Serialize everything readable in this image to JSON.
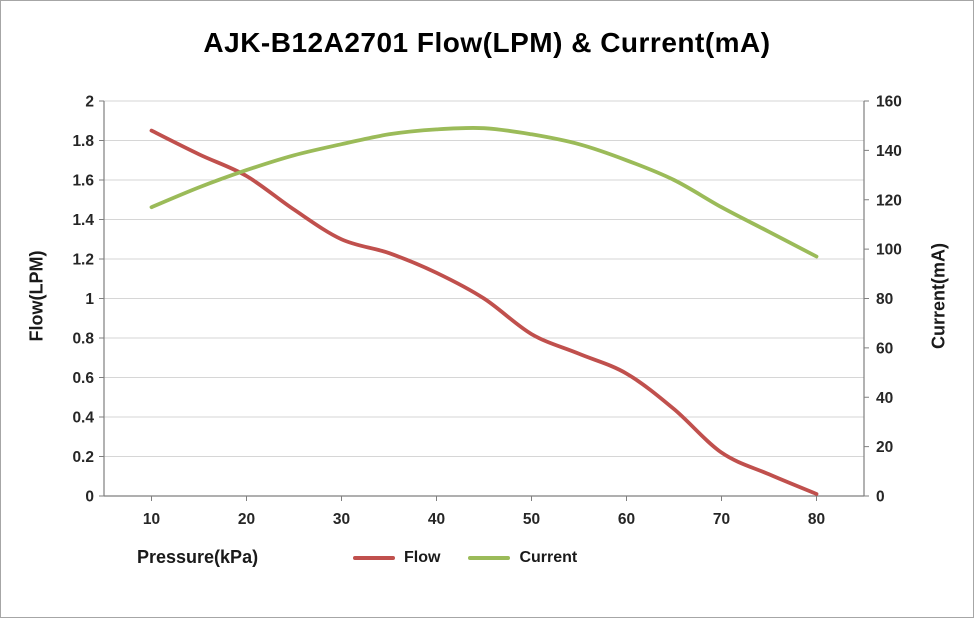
{
  "chart_data": {
    "type": "line",
    "title": "AJK-B12A2701 Flow(LPM) & Current(mA)",
    "xlabel": "Pressure(kPa)",
    "ylabel_left": "Flow(LPM)",
    "ylabel_right": "Current(mA)",
    "xlim": [
      5,
      85
    ],
    "x_ticks": [
      10,
      20,
      30,
      40,
      50,
      60,
      70,
      80
    ],
    "ylim_left": [
      0,
      2
    ],
    "ytick_step_left": 0.2,
    "ylim_right": [
      0,
      160
    ],
    "ytick_step_right": 20,
    "grid": "horizontal",
    "grid_color": "#d6d6d6",
    "axis_color": "#7f7f7f",
    "legend_position": "bottom",
    "series": [
      {
        "name": "Flow",
        "axis": "left",
        "color": "#c0504d",
        "x": [
          10,
          15,
          20,
          25,
          30,
          35,
          40,
          45,
          50,
          55,
          60,
          65,
          70,
          75,
          80
        ],
        "values": [
          1.85,
          1.73,
          1.62,
          1.45,
          1.3,
          1.23,
          1.13,
          1.0,
          0.82,
          0.72,
          0.62,
          0.44,
          0.22,
          0.11,
          0.01
        ]
      },
      {
        "name": "Current",
        "axis": "right",
        "color": "#9bbb59",
        "x": [
          10,
          15,
          20,
          25,
          30,
          35,
          40,
          45,
          50,
          55,
          60,
          65,
          70,
          75,
          80
        ],
        "values": [
          117,
          125,
          132,
          138,
          142.5,
          146.5,
          148.5,
          149,
          146.5,
          142.5,
          136,
          128,
          117,
          107,
          97
        ]
      }
    ]
  }
}
